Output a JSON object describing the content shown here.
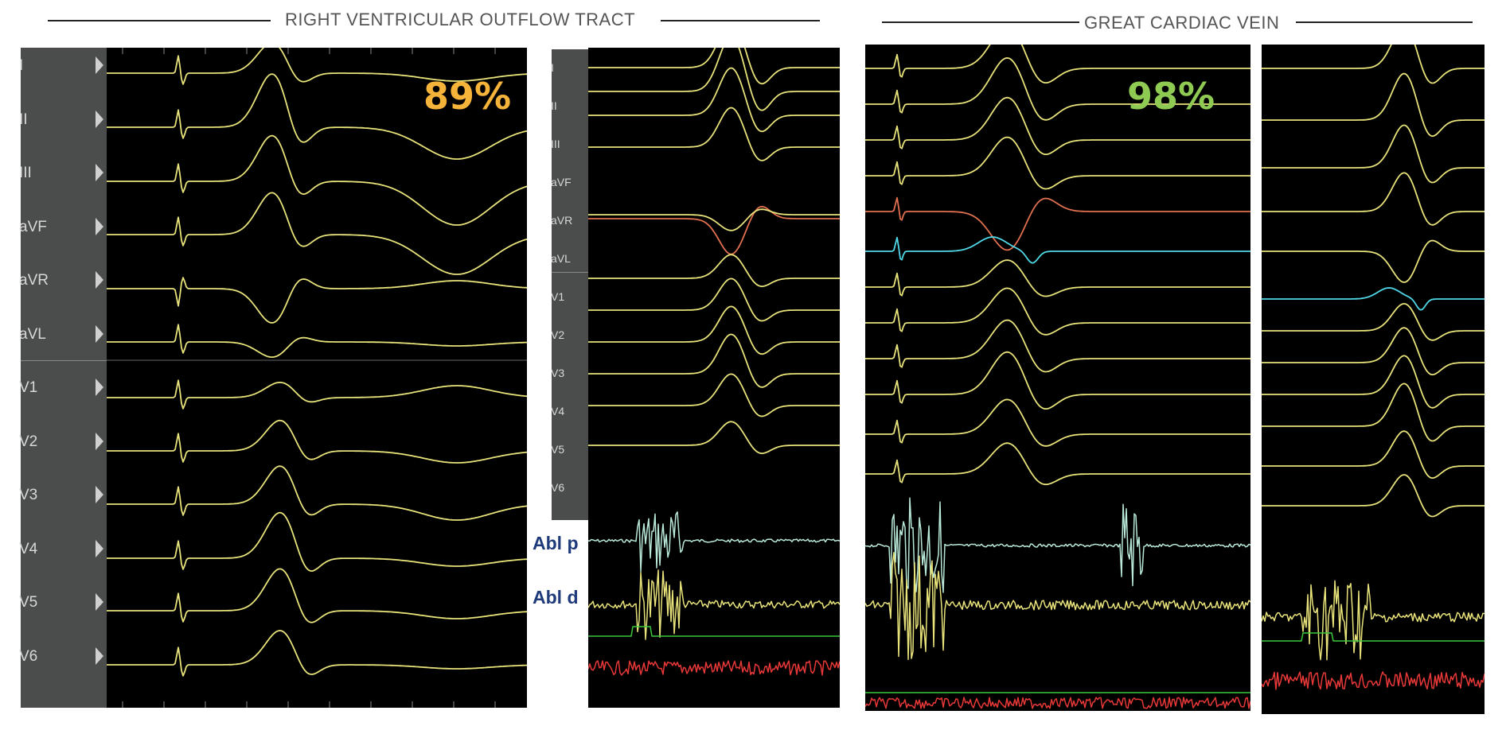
{
  "sections": {
    "rvot_title": "RIGHT VENTRICULAR OUTFLOW TRACT",
    "gcv_title": "GREAT CARDIAC VEIN"
  },
  "match": {
    "rvot_value": "89%",
    "rvot_color": "#f6b33a",
    "gcv_value": "98%",
    "gcv_color": "#8fcb52"
  },
  "leads": [
    "I",
    "II",
    "III",
    "aVF",
    "aVR",
    "aVL",
    "V1",
    "V2",
    "V3",
    "V4",
    "V5",
    "V6"
  ],
  "ablation_labels": {
    "proximal": "Abl p",
    "distal": "Abl d"
  },
  "colors": {
    "trace": "#e8e27a",
    "avr_trace": "#e0704f",
    "cs_trace": "#4fd8e8",
    "abl_prox": "#b8e8d8",
    "abl_green": "#3cc83c",
    "abl_red": "#e83838"
  }
}
